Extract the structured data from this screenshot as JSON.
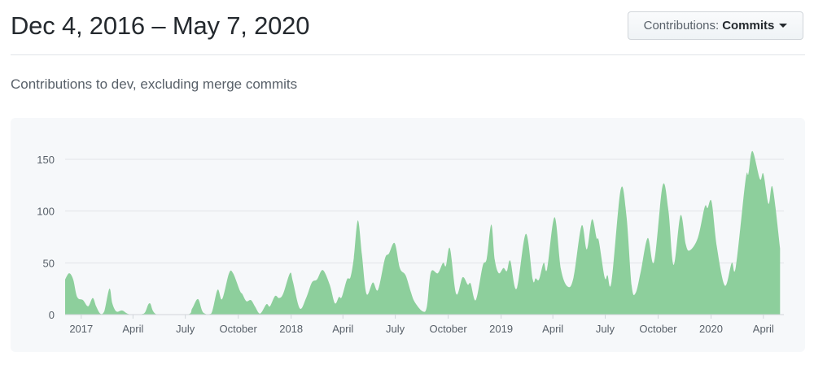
{
  "header": {
    "title": "Dec 4, 2016 – May 7, 2020",
    "dropdown_label": "Contributions:",
    "dropdown_value": "Commits"
  },
  "subtitle": "Contributions to dev, excluding merge commits",
  "colors": {
    "area_fill": "#8dcf9c",
    "grid": "#e1e4e8",
    "panel": "#f6f8fa"
  },
  "chart_data": {
    "type": "area",
    "title": "",
    "xlabel": "",
    "ylabel": "",
    "ylim": [
      0,
      165
    ],
    "xlim": [
      "2016-12-04",
      "2020-05-01"
    ],
    "grid": true,
    "y_ticks": [
      "0",
      "50",
      "100",
      "150"
    ],
    "x_ticks": [
      {
        "label": "2017",
        "date": "2017-01-01"
      },
      {
        "label": "April",
        "date": "2017-04-01"
      },
      {
        "label": "July",
        "date": "2017-07-01"
      },
      {
        "label": "October",
        "date": "2017-10-01"
      },
      {
        "label": "2018",
        "date": "2018-01-01"
      },
      {
        "label": "April",
        "date": "2018-04-01"
      },
      {
        "label": "July",
        "date": "2018-07-01"
      },
      {
        "label": "October",
        "date": "2018-10-01"
      },
      {
        "label": "2019",
        "date": "2019-01-01"
      },
      {
        "label": "April",
        "date": "2019-04-01"
      },
      {
        "label": "July",
        "date": "2019-07-01"
      },
      {
        "label": "October",
        "date": "2019-10-01"
      },
      {
        "label": "2020",
        "date": "2020-01-01"
      },
      {
        "label": "April",
        "date": "2020-04-01"
      }
    ],
    "points": [
      [
        "2016-12-04",
        34
      ],
      [
        "2016-12-11",
        40
      ],
      [
        "2016-12-18",
        34
      ],
      [
        "2016-12-25",
        17
      ],
      [
        "2017-01-04",
        14
      ],
      [
        "2017-01-13",
        8
      ],
      [
        "2017-01-21",
        16
      ],
      [
        "2017-01-27",
        8
      ],
      [
        "2017-02-03",
        1
      ],
      [
        "2017-02-10",
        3
      ],
      [
        "2017-02-19",
        25
      ],
      [
        "2017-02-24",
        11
      ],
      [
        "2017-03-03",
        3
      ],
      [
        "2017-03-13",
        4
      ],
      [
        "2017-03-22",
        1
      ],
      [
        "2017-04-01",
        0
      ],
      [
        "2017-04-20",
        1
      ],
      [
        "2017-04-30",
        11
      ],
      [
        "2017-05-13",
        0
      ],
      [
        "2017-07-04",
        0
      ],
      [
        "2017-07-13",
        6
      ],
      [
        "2017-07-23",
        15
      ],
      [
        "2017-08-01",
        2
      ],
      [
        "2017-08-15",
        1
      ],
      [
        "2017-08-26",
        24
      ],
      [
        "2017-09-03",
        15
      ],
      [
        "2017-09-15",
        40
      ],
      [
        "2017-09-22",
        40
      ],
      [
        "2017-10-04",
        23
      ],
      [
        "2017-10-08",
        20
      ],
      [
        "2017-10-15",
        13
      ],
      [
        "2017-10-23",
        14
      ],
      [
        "2017-10-30",
        8
      ],
      [
        "2017-11-08",
        1
      ],
      [
        "2017-11-19",
        10
      ],
      [
        "2017-11-25",
        8
      ],
      [
        "2017-12-04",
        18
      ],
      [
        "2017-12-11",
        16
      ],
      [
        "2017-12-18",
        20
      ],
      [
        "2017-12-30",
        40
      ],
      [
        "2018-01-04",
        32
      ],
      [
        "2018-01-16",
        6
      ],
      [
        "2018-01-27",
        16
      ],
      [
        "2018-02-06",
        31
      ],
      [
        "2018-02-15",
        34
      ],
      [
        "2018-02-25",
        43
      ],
      [
        "2018-03-09",
        29
      ],
      [
        "2018-03-18",
        11
      ],
      [
        "2018-03-25",
        17
      ],
      [
        "2018-03-30",
        17
      ],
      [
        "2018-04-08",
        34
      ],
      [
        "2018-04-14",
        36
      ],
      [
        "2018-04-20",
        55
      ],
      [
        "2018-04-27",
        91
      ],
      [
        "2018-05-04",
        58
      ],
      [
        "2018-05-12",
        20
      ],
      [
        "2018-05-23",
        31
      ],
      [
        "2018-06-01",
        24
      ],
      [
        "2018-06-13",
        54
      ],
      [
        "2018-06-20",
        59
      ],
      [
        "2018-06-30",
        69
      ],
      [
        "2018-07-09",
        45
      ],
      [
        "2018-07-19",
        38
      ],
      [
        "2018-07-28",
        22
      ],
      [
        "2018-08-04",
        12
      ],
      [
        "2018-08-18",
        3
      ],
      [
        "2018-08-25",
        8
      ],
      [
        "2018-09-01",
        41
      ],
      [
        "2018-09-13",
        40
      ],
      [
        "2018-09-22",
        50
      ],
      [
        "2018-09-27",
        47
      ],
      [
        "2018-10-04",
        64
      ],
      [
        "2018-10-15",
        20
      ],
      [
        "2018-10-26",
        36
      ],
      [
        "2018-11-04",
        29
      ],
      [
        "2018-11-09",
        30
      ],
      [
        "2018-11-18",
        14
      ],
      [
        "2018-11-30",
        47
      ],
      [
        "2018-12-07",
        54
      ],
      [
        "2018-12-15",
        87
      ],
      [
        "2018-12-21",
        53
      ],
      [
        "2018-12-28",
        40
      ],
      [
        "2019-01-05",
        45
      ],
      [
        "2019-01-11",
        42
      ],
      [
        "2019-01-17",
        52
      ],
      [
        "2019-01-28",
        25
      ],
      [
        "2019-02-13",
        78
      ],
      [
        "2019-02-25",
        34
      ],
      [
        "2019-03-02",
        35
      ],
      [
        "2019-03-08",
        34
      ],
      [
        "2019-03-16",
        50
      ],
      [
        "2019-03-22",
        44
      ],
      [
        "2019-04-04",
        94
      ],
      [
        "2019-04-15",
        44
      ],
      [
        "2019-04-27",
        27
      ],
      [
        "2019-05-07",
        36
      ],
      [
        "2019-05-21",
        86
      ],
      [
        "2019-05-30",
        63
      ],
      [
        "2019-06-08",
        92
      ],
      [
        "2019-06-16",
        74
      ],
      [
        "2019-06-20",
        71
      ],
      [
        "2019-06-30",
        36
      ],
      [
        "2019-07-05",
        38
      ],
      [
        "2019-07-12",
        32
      ],
      [
        "2019-07-28",
        121
      ],
      [
        "2019-08-07",
        95
      ],
      [
        "2019-08-16",
        28
      ],
      [
        "2019-08-23",
        21
      ],
      [
        "2019-09-01",
        42
      ],
      [
        "2019-09-13",
        74
      ],
      [
        "2019-09-24",
        51
      ],
      [
        "2019-10-09",
        125
      ],
      [
        "2019-10-19",
        100
      ],
      [
        "2019-10-28",
        48
      ],
      [
        "2019-11-09",
        96
      ],
      [
        "2019-11-18",
        68
      ],
      [
        "2019-11-25",
        62
      ],
      [
        "2019-12-09",
        74
      ],
      [
        "2019-12-21",
        104
      ],
      [
        "2019-12-26",
        103
      ],
      [
        "2020-01-02",
        109
      ],
      [
        "2020-01-11",
        66
      ],
      [
        "2020-01-25",
        28
      ],
      [
        "2020-02-06",
        50
      ],
      [
        "2020-02-13",
        46
      ],
      [
        "2020-03-01",
        130
      ],
      [
        "2020-03-06",
        136
      ],
      [
        "2020-03-13",
        158
      ],
      [
        "2020-03-26",
        131
      ],
      [
        "2020-04-01",
        136
      ],
      [
        "2020-04-10",
        107
      ],
      [
        "2020-04-17",
        123
      ],
      [
        "2020-04-30",
        64
      ]
    ]
  }
}
